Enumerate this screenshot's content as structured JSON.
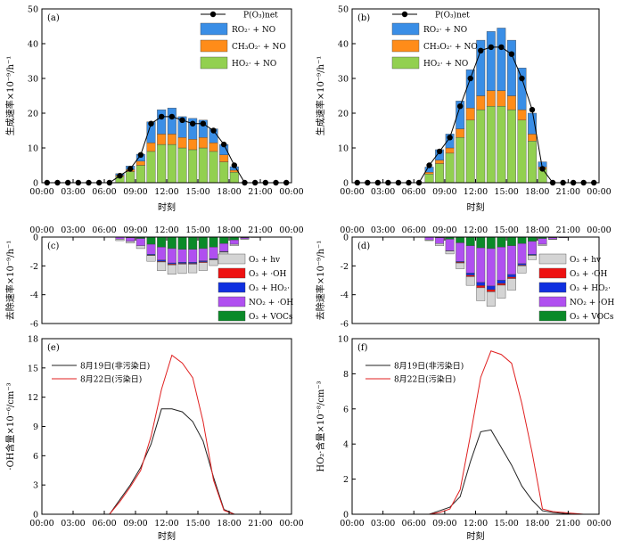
{
  "chart_data": [
    {
      "id": "a",
      "type": "bar+line",
      "panel_label": "(a)",
      "xlabel": "时刻",
      "ylabel": "生成速率×10⁻⁹/h⁻¹",
      "xticks": [
        "00:00",
        "03:00",
        "06:00",
        "09:00",
        "12:00",
        "15:00",
        "18:00",
        "21:00",
        "00:00"
      ],
      "ylim": [
        0,
        50
      ],
      "yticks": [
        0,
        10,
        20,
        30,
        40,
        50
      ],
      "line_name": "P(O₃)net",
      "line_values": [
        0,
        0,
        0,
        0,
        0,
        0,
        0,
        2,
        4,
        8,
        17,
        19,
        19,
        18,
        17,
        17,
        15,
        11,
        5,
        0,
        0,
        0,
        0,
        0
      ],
      "series": [
        {
          "name": "HO₂· + NO",
          "color": "#92d050",
          "values": [
            0,
            0,
            0,
            0,
            0,
            0,
            0,
            1.8,
            3.2,
            5,
            9,
            11,
            11,
            10,
            9.5,
            10,
            9,
            6,
            3,
            0,
            0,
            0,
            0,
            0
          ]
        },
        {
          "name": "CH₃O₂· + NO",
          "color": "#ff8c19",
          "values": [
            0,
            0,
            0,
            0,
            0,
            0,
            0,
            0.3,
            0.6,
            1.2,
            2.5,
            3,
            3,
            3,
            3,
            3,
            2.5,
            2,
            0.6,
            0,
            0,
            0,
            0,
            0
          ]
        },
        {
          "name": "RO₂· + NO",
          "color": "#3a8ee6",
          "values": [
            0,
            0,
            0,
            0,
            0,
            0,
            0,
            0.5,
            1,
            2,
            6,
            7,
            7.5,
            6,
            6,
            5,
            4,
            3,
            1,
            0,
            0,
            0,
            0,
            0
          ]
        }
      ]
    },
    {
      "id": "b",
      "type": "bar+line",
      "panel_label": "(b)",
      "xlabel": "时刻",
      "ylabel": "生成速率×10⁻⁹/h⁻¹",
      "xticks": [
        "00:00",
        "03:00",
        "06:00",
        "09:00",
        "12:00",
        "15:00",
        "18:00",
        "21:00",
        "00:00"
      ],
      "ylim": [
        0,
        50
      ],
      "yticks": [
        0,
        10,
        20,
        30,
        40,
        50
      ],
      "line_name": "P(O₃)net",
      "line_values": [
        0,
        0,
        0,
        0,
        0,
        0,
        0,
        5,
        9,
        13,
        22,
        30,
        38,
        39,
        39,
        37,
        30,
        21,
        4,
        0,
        0,
        0,
        0,
        0
      ],
      "series": [
        {
          "name": "HO₂· + NO",
          "color": "#92d050",
          "values": [
            0,
            0,
            0,
            0,
            0,
            0,
            0,
            2.5,
            5.5,
            8.5,
            13,
            18,
            21,
            22,
            22,
            21,
            18,
            12,
            4,
            0,
            0,
            0,
            0,
            0
          ]
        },
        {
          "name": "CH₃O₂· + NO",
          "color": "#ff8c19",
          "values": [
            0,
            0,
            0,
            0,
            0,
            0,
            0,
            0.5,
            1,
            1.5,
            2.5,
            3.5,
            4,
            4.5,
            4.5,
            4,
            3,
            2,
            0.5,
            0,
            0,
            0,
            0,
            0
          ]
        },
        {
          "name": "RO₂· + NO",
          "color": "#3a8ee6",
          "values": [
            0,
            0,
            0,
            0,
            0,
            0,
            0,
            1.5,
            3,
            4,
            8,
            11,
            16,
            17,
            18,
            16,
            12,
            6,
            1.5,
            0,
            0,
            0,
            0,
            0
          ]
        }
      ]
    },
    {
      "id": "c",
      "type": "bar",
      "panel_label": "(c)",
      "ylabel": "去除速率×10⁻⁹/h⁻¹",
      "xticks": [
        "00:00",
        "03:00",
        "06:00",
        "09:00",
        "12:00",
        "15:00",
        "18:00",
        "21:00",
        "00:00"
      ],
      "ylim": [
        -6,
        0
      ],
      "yticks": [
        0,
        -2,
        -4,
        -6
      ],
      "series": [
        {
          "name": "O₃ + VOCs",
          "color": "#0a8a28",
          "values": [
            0,
            0,
            0,
            0,
            0,
            0,
            0,
            0,
            -0.05,
            -0.1,
            -0.5,
            -0.7,
            -0.8,
            -0.85,
            -0.85,
            -0.8,
            -0.7,
            -0.45,
            -0.2,
            -0.05,
            0,
            0,
            0,
            0
          ]
        },
        {
          "name": "NO₂ + ·OH",
          "color": "#b050f0",
          "values": [
            0,
            0,
            0,
            0,
            0,
            0,
            0,
            -0.15,
            -0.25,
            -0.5,
            -0.7,
            -0.9,
            -1.0,
            -0.9,
            -0.9,
            -0.85,
            -0.8,
            -0.55,
            -0.3,
            -0.08,
            -0.03,
            -0.02,
            0,
            0
          ]
        },
        {
          "name": "O₃ + HO₂·",
          "color": "#1030e0",
          "values": [
            0,
            0,
            0,
            0,
            0,
            0,
            0,
            0,
            0,
            0,
            -0.05,
            -0.08,
            -0.08,
            -0.08,
            -0.08,
            -0.07,
            -0.05,
            -0.03,
            0,
            0,
            0,
            0,
            0,
            0
          ]
        },
        {
          "name": "O₃ + ·OH",
          "color": "#ee1111",
          "values": [
            0,
            0,
            0,
            0,
            0,
            0,
            0,
            0,
            0,
            0,
            -0.03,
            -0.05,
            -0.05,
            -0.05,
            -0.05,
            -0.05,
            -0.03,
            -0.02,
            0,
            0,
            0,
            0,
            0,
            0
          ]
        },
        {
          "name": "O₃ + hv",
          "color": "#d4d4d4",
          "values": [
            0,
            0,
            0,
            0,
            0,
            0,
            0,
            -0.1,
            -0.12,
            -0.2,
            -0.4,
            -0.6,
            -0.65,
            -0.65,
            -0.6,
            -0.55,
            -0.4,
            -0.25,
            -0.1,
            -0.02,
            0,
            0,
            0,
            0
          ]
        }
      ]
    },
    {
      "id": "d",
      "type": "bar",
      "panel_label": "(d)",
      "ylabel": "去除速率×10⁻⁹/h⁻¹",
      "xticks": [
        "00:00",
        "03:00",
        "06:00",
        "09:00",
        "12:00",
        "15:00",
        "18:00",
        "21:00",
        "00:00"
      ],
      "ylim": [
        -6,
        0
      ],
      "yticks": [
        0,
        -2,
        -4,
        -6
      ],
      "series": [
        {
          "name": "O₃ + VOCs",
          "color": "#0a8a28",
          "values": [
            0,
            0,
            0,
            0,
            0,
            0,
            0,
            0,
            -0.05,
            -0.15,
            -0.4,
            -0.6,
            -0.75,
            -0.8,
            -0.7,
            -0.6,
            -0.45,
            -0.3,
            -0.1,
            -0.05,
            0,
            0,
            0,
            0
          ]
        },
        {
          "name": "NO₂ + ·OH",
          "color": "#b050f0",
          "values": [
            0,
            0,
            0,
            0,
            0,
            0,
            0,
            -0.2,
            -0.4,
            -0.8,
            -1.3,
            -1.9,
            -2.4,
            -2.6,
            -2.3,
            -2.0,
            -1.4,
            -0.9,
            -0.4,
            -0.1,
            -0.05,
            -0.02,
            0,
            0
          ]
        },
        {
          "name": "O₃ + HO₂·",
          "color": "#1030e0",
          "values": [
            0,
            0,
            0,
            0,
            0,
            0,
            0,
            0,
            0,
            -0.02,
            -0.05,
            -0.15,
            -0.22,
            -0.25,
            -0.22,
            -0.18,
            -0.1,
            -0.05,
            0,
            0,
            0,
            0,
            0,
            0
          ]
        },
        {
          "name": "O₃ + ·OH",
          "color": "#ee1111",
          "values": [
            0,
            0,
            0,
            0,
            0,
            0,
            0,
            0,
            0,
            0,
            -0.05,
            -0.1,
            -0.15,
            -0.15,
            -0.12,
            -0.1,
            -0.05,
            -0.02,
            0,
            0,
            0,
            0,
            0,
            0
          ]
        },
        {
          "name": "O₃ + hv",
          "color": "#d4d4d4",
          "values": [
            0,
            0,
            0,
            0,
            0,
            0,
            0,
            -0.05,
            -0.15,
            -0.2,
            -0.4,
            -0.6,
            -0.9,
            -1.0,
            -0.9,
            -0.8,
            -0.5,
            -0.3,
            -0.1,
            -0.02,
            0,
            0,
            0,
            0
          ]
        }
      ]
    },
    {
      "id": "e",
      "type": "line",
      "panel_label": "(e)",
      "xlabel": "时刻",
      "ylabel": "·OH含量×10⁻⁶/cm⁻³",
      "xticks": [
        "00:00",
        "03:00",
        "06:00",
        "09:00",
        "12:00",
        "15:00",
        "18:00",
        "21:00",
        "00:00"
      ],
      "ylim": [
        0,
        18
      ],
      "yticks": [
        0,
        3,
        6,
        9,
        12,
        15,
        18
      ],
      "series": [
        {
          "name": "8月19日(非污染日)",
          "color": "#222222",
          "values": [
            0,
            0,
            0,
            0,
            0,
            0,
            0,
            1.5,
            3,
            4.8,
            7.2,
            10.8,
            10.8,
            10.5,
            9.5,
            7.5,
            3.8,
            0.5,
            0,
            0,
            0,
            0,
            0,
            0
          ]
        },
        {
          "name": "8月22日(污染日)",
          "color": "#e02020",
          "values": [
            0,
            0,
            0,
            0,
            0,
            0,
            0,
            1.3,
            2.8,
            4.5,
            8,
            12.8,
            16.3,
            15.5,
            14,
            9.5,
            3.5,
            0.4,
            0,
            0,
            0,
            0,
            0,
            0
          ]
        }
      ]
    },
    {
      "id": "f",
      "type": "line",
      "panel_label": "(f)",
      "xlabel": "时刻",
      "ylabel": "HO₂·含量×10⁻⁸/cm⁻³",
      "xticks": [
        "00:00",
        "03:00",
        "06:00",
        "09:00",
        "12:00",
        "15:00",
        "18:00",
        "21:00",
        "00:00"
      ],
      "ylim": [
        0,
        10
      ],
      "yticks": [
        0,
        2,
        4,
        6,
        8,
        10
      ],
      "series": [
        {
          "name": "8月19日(非污染日)",
          "color": "#222222",
          "values": [
            0,
            0,
            0,
            0,
            0,
            0,
            0,
            0,
            0.2,
            0.4,
            1,
            3,
            4.7,
            4.8,
            3.8,
            2.8,
            1.6,
            0.8,
            0.2,
            0.1,
            0.05,
            0,
            0,
            0
          ]
        },
        {
          "name": "8月22日(污染日)",
          "color": "#e02020",
          "values": [
            0,
            0,
            0,
            0,
            0,
            0,
            0,
            0,
            0.1,
            0.3,
            1.4,
            4.5,
            7.8,
            9.3,
            9.1,
            8.6,
            6.3,
            3.5,
            0.3,
            0.15,
            0.1,
            0.05,
            0,
            0
          ]
        }
      ]
    }
  ]
}
